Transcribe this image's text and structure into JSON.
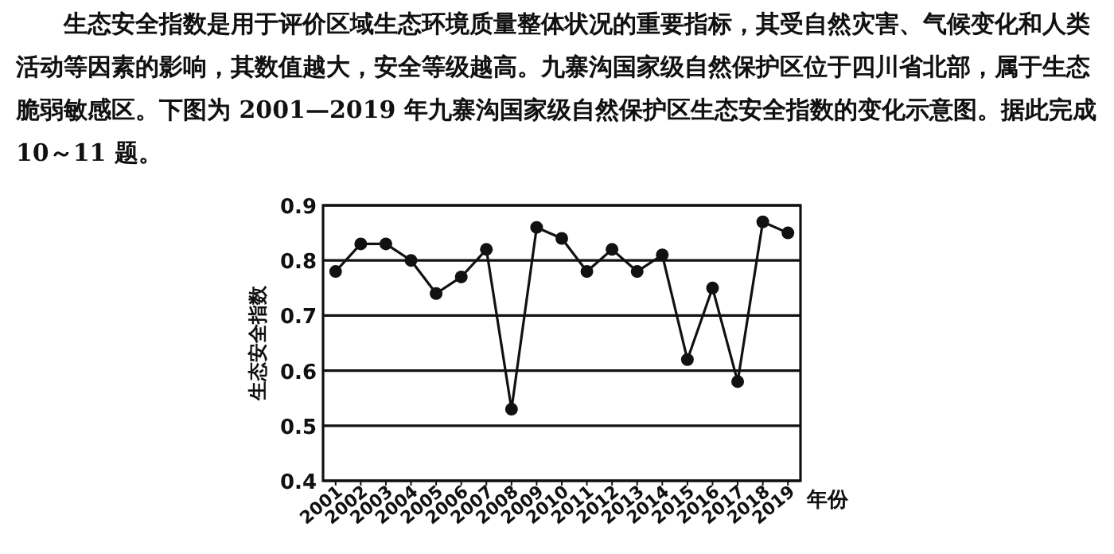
{
  "chart_data": {
    "type": "line",
    "annotations": [
      "生态安全指数是用于评价区域生态环境质量整体状况的重要指标，其受自然灾害、气候变化和人类活动等因素的影响，其数值越大，安全等级越高。九寨沟国家级自然保护区位于四川省北部，属于生态脆弱敏感区。下图为 2001—2019 年九寨沟国家级自然保护区生态安全指数的变化示意图。据此完成 10～11 题。"
    ],
    "xlabel": "年份",
    "ylabel": "生态安全指数",
    "categories": [
      "2001",
      "2002",
      "2003",
      "2004",
      "2005",
      "2006",
      "2007",
      "2008",
      "2009",
      "2010",
      "2011",
      "2012",
      "2013",
      "2014",
      "2015",
      "2016",
      "2017",
      "2018",
      "2019"
    ],
    "values": [
      0.78,
      0.83,
      0.83,
      0.8,
      0.74,
      0.77,
      0.82,
      0.53,
      0.86,
      0.84,
      0.78,
      0.82,
      0.78,
      0.81,
      0.62,
      0.75,
      0.58,
      0.87,
      0.85
    ],
    "color": "#111111",
    "ylim": [
      0.4,
      0.9
    ],
    "yticks": [
      0.4,
      0.5,
      0.6,
      0.7,
      0.8,
      0.9
    ],
    "grid": "y",
    "marker": "circle",
    "line_style": "solid"
  }
}
